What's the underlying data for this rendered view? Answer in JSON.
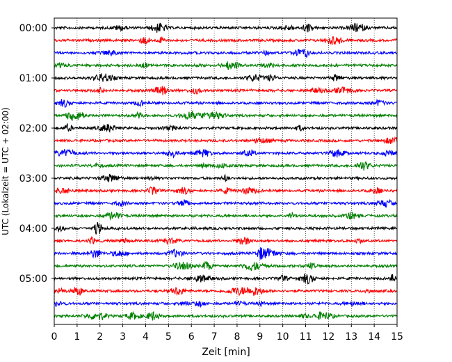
{
  "chart_data": {
    "type": "line",
    "title": "",
    "xlabel": "Zeit  [min]",
    "ylabel": "UTC (Lokalzeit = UTC + 02:00)",
    "xlim": [
      0,
      15
    ],
    "x_ticks": [
      "0",
      "1",
      "2",
      "3",
      "4",
      "5",
      "6",
      "7",
      "8",
      "9",
      "10",
      "11",
      "12",
      "13",
      "14",
      "15"
    ],
    "y_ticks": [
      "00:00",
      "01:00",
      "02:00",
      "03:00",
      "04:00",
      "05:00"
    ],
    "grid": "vertical dotted lines at each minute",
    "trace_interval_min": 15,
    "trace_count": 24,
    "trace_colors": [
      "#000000",
      "#ff0000",
      "#0000ff",
      "#008000"
    ],
    "traces_start": [
      "00:00",
      "00:15",
      "00:30",
      "00:45",
      "01:00",
      "01:15",
      "01:30",
      "01:45",
      "02:00",
      "02:15",
      "02:30",
      "02:45",
      "03:00",
      "03:15",
      "03:30",
      "03:45",
      "04:00",
      "04:15",
      "04:30",
      "04:45",
      "05:00",
      "05:15",
      "05:30",
      "05:45"
    ]
  }
}
